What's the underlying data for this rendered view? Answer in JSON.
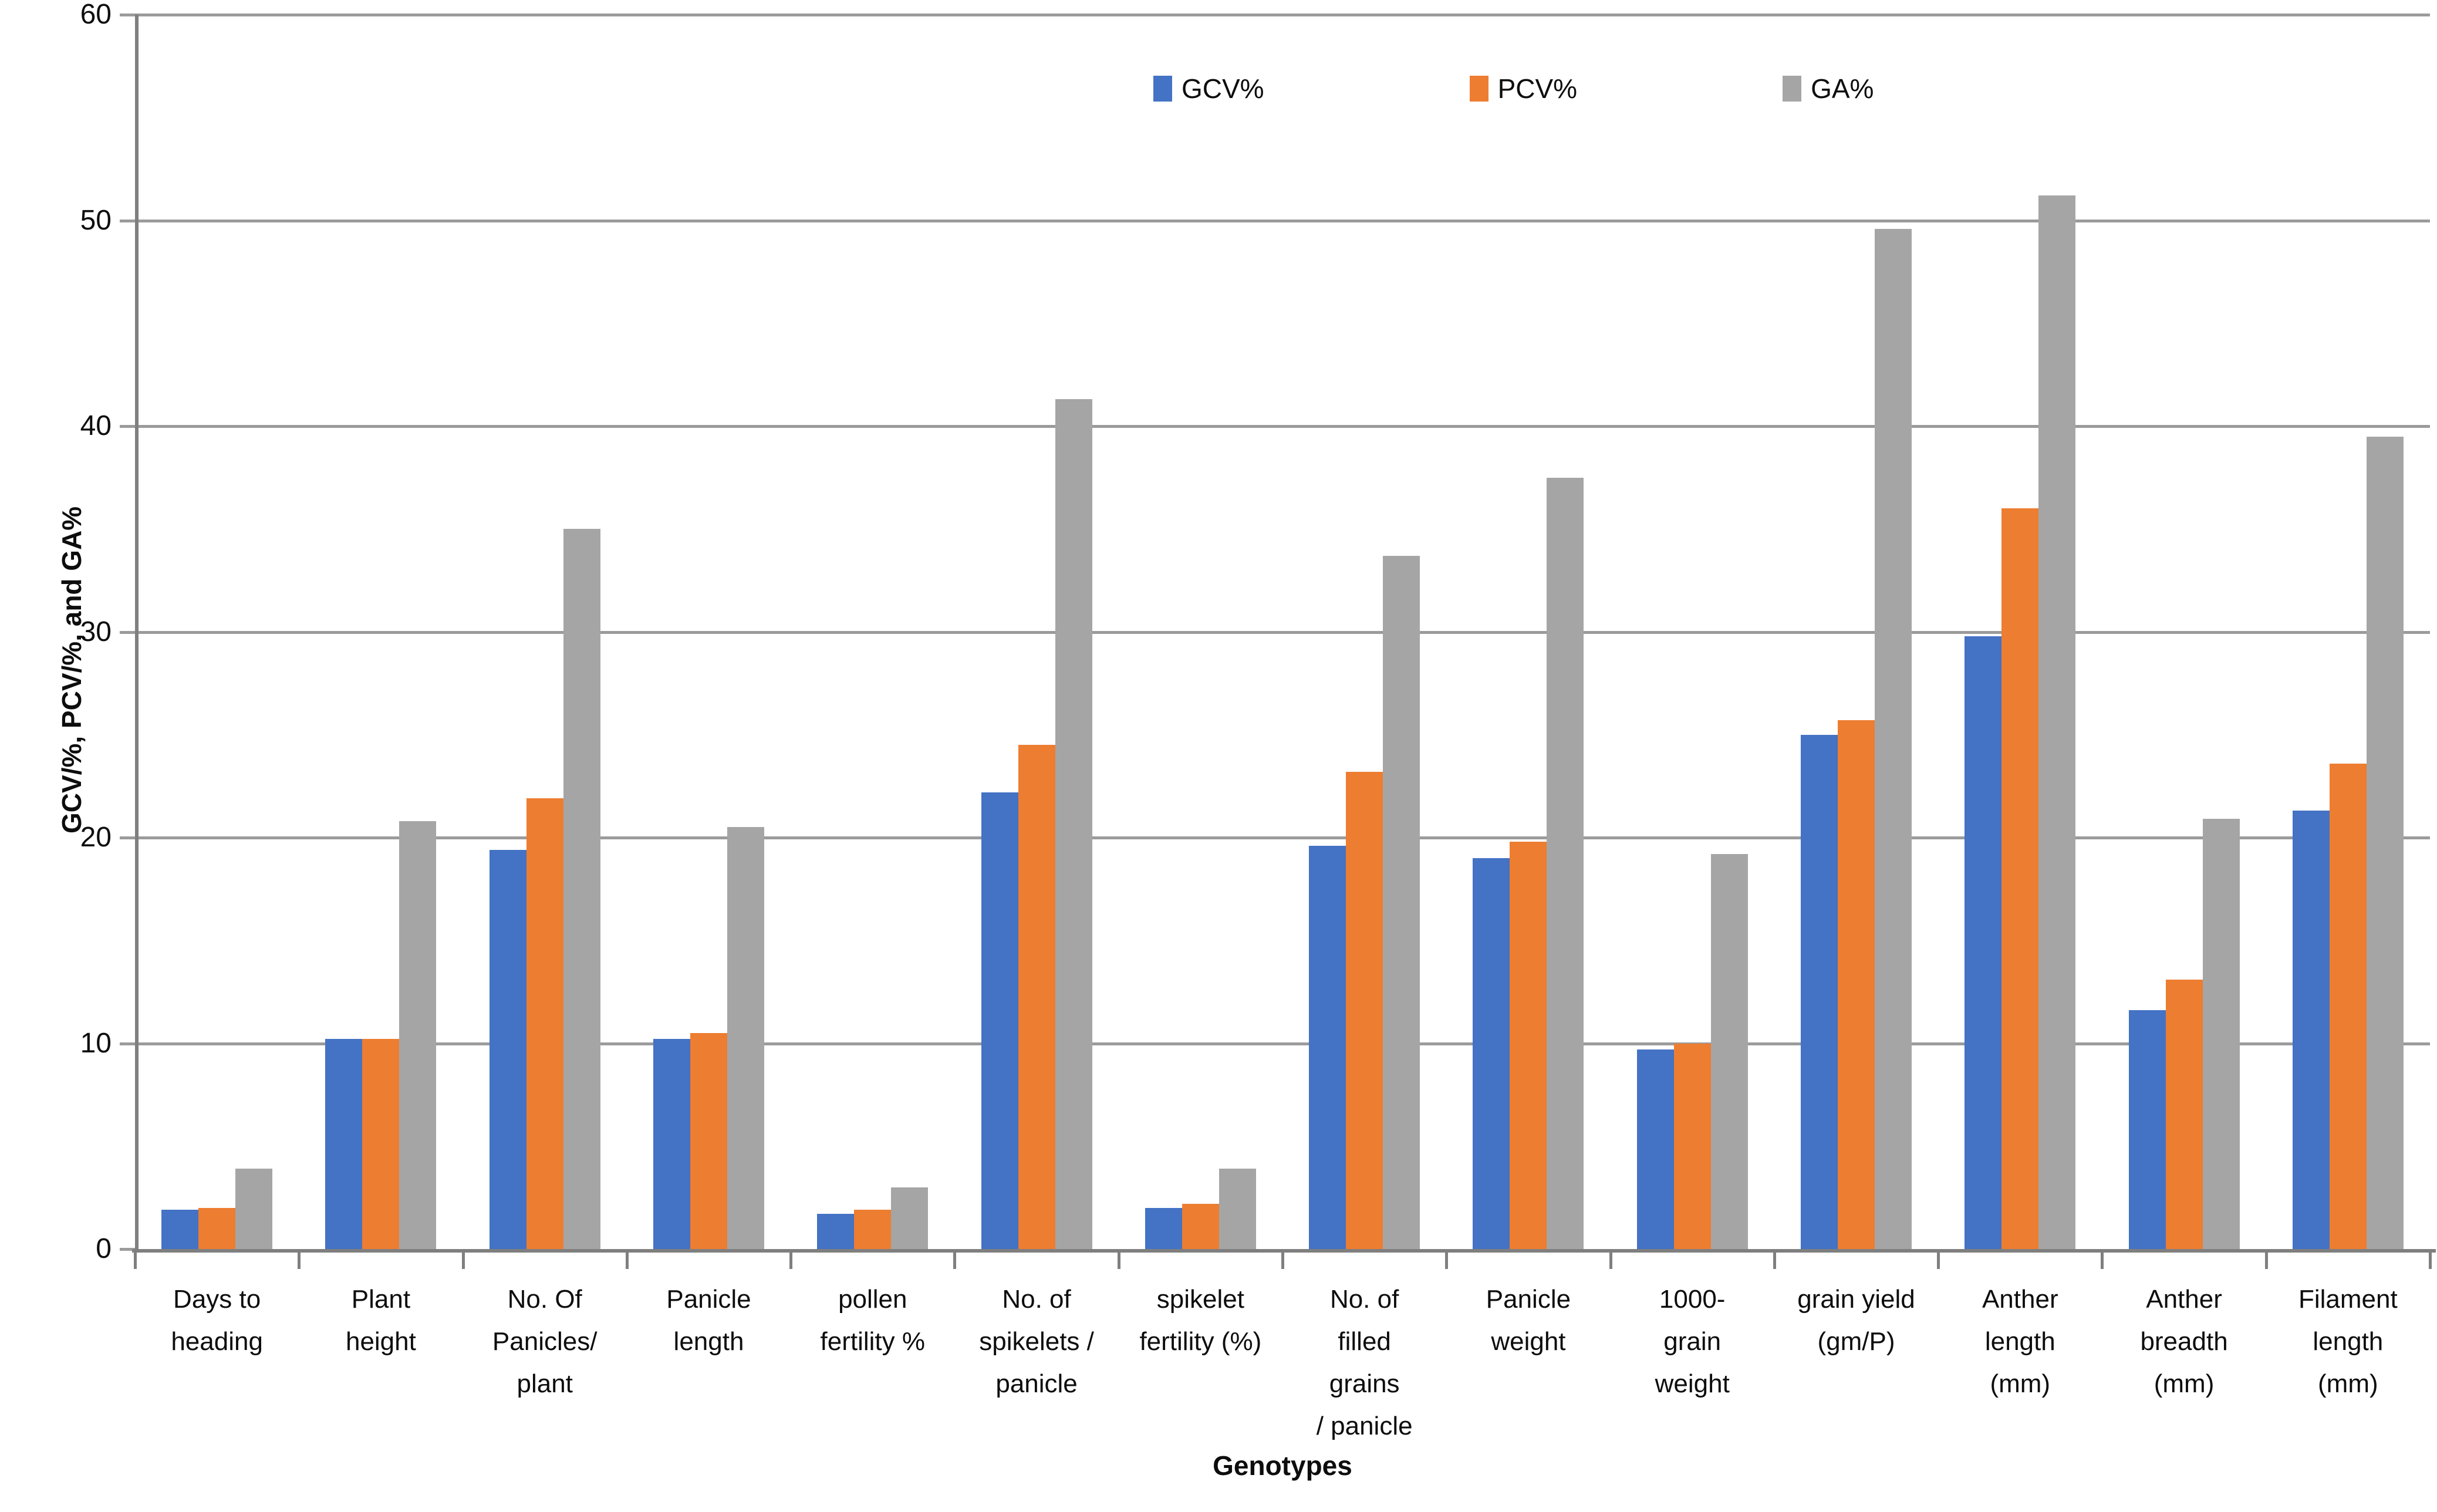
{
  "chart_data": {
    "type": "bar",
    "title": "",
    "xlabel": "Genotypes",
    "ylabel": "GCV/%, PCV/%, and GA%",
    "ylim": [
      0,
      60
    ],
    "ytick_step": 10,
    "ytick_labels": [
      "0",
      "10",
      "20",
      "30",
      "40",
      "50",
      "60"
    ],
    "grid": true,
    "legend_position": "top-center",
    "categories": [
      "Days to\nheading",
      "Plant\nheight",
      "No. Of\nPanicles/\nplant",
      "Panicle\nlength",
      "pollen\nfertility %",
      "No. of\nspikelets /\npanicle",
      "spikelet\nfertility (%)",
      "No. of\nfilled\ngrains\n/ panicle",
      "Panicle\nweight",
      "1000-\ngrain\nweight",
      "grain yield\n(gm/P)",
      "Anther\nlength\n(mm)",
      "Anther\nbreadth\n(mm)",
      "Filament\nlength\n(mm)"
    ],
    "series": [
      {
        "name": "GCV%",
        "color": "#4472C4",
        "values": [
          1.9,
          10.2,
          19.4,
          10.2,
          1.7,
          22.2,
          2.0,
          19.6,
          19.0,
          9.7,
          25.0,
          29.8,
          11.6,
          21.3
        ]
      },
      {
        "name": "PCV%",
        "color": "#ED7D31",
        "values": [
          2.0,
          10.2,
          21.9,
          10.5,
          1.9,
          24.5,
          2.2,
          23.2,
          19.8,
          10.0,
          25.7,
          36.0,
          13.1,
          23.6
        ]
      },
      {
        "name": "GA%",
        "color": "#A5A5A5",
        "values": [
          3.9,
          20.8,
          35.0,
          20.5,
          3.0,
          41.3,
          3.9,
          33.7,
          37.5,
          19.2,
          49.6,
          51.2,
          20.9,
          39.5
        ]
      }
    ],
    "colors": {
      "gridline": "#9b9b9b",
      "axis": "#7f7f7f",
      "text": "#0d0d0d",
      "background": "#ffffff"
    }
  }
}
